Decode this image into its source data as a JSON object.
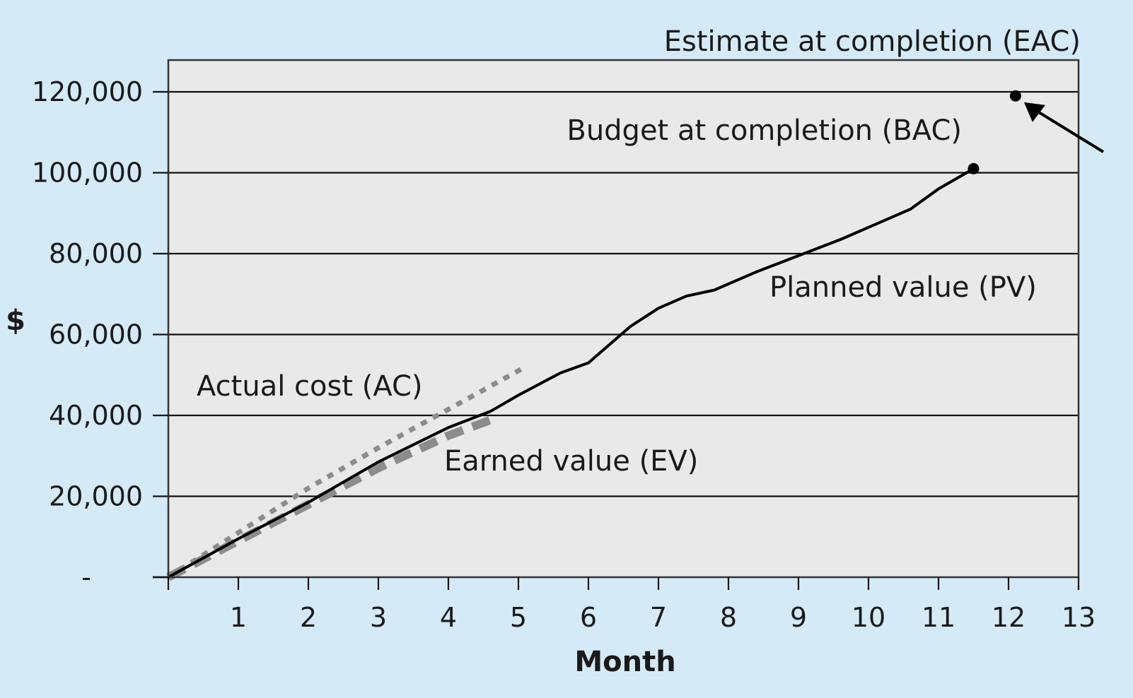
{
  "chart_data": {
    "type": "line",
    "title": "",
    "xlabel": "Month",
    "ylabel": "$",
    "xlim": [
      0,
      13
    ],
    "ylim": [
      0,
      125000
    ],
    "x_ticks": [
      1,
      2,
      3,
      4,
      5,
      6,
      7,
      8,
      9,
      10,
      11,
      12,
      13
    ],
    "x_tick_labels": [
      "1",
      "2",
      "3",
      "4",
      "5",
      "6",
      "7",
      "8",
      "9",
      "10",
      "11",
      "12",
      "13"
    ],
    "y_ticks": [
      0,
      20000,
      40000,
      60000,
      80000,
      100000,
      120000
    ],
    "y_tick_labels": [
      "-",
      "20,000",
      "40,000",
      "60,000",
      "80,000",
      "100,000",
      "120,000"
    ],
    "grid": "horizontal",
    "background": "#e9e9e9",
    "page_background": "#d4eaf7",
    "series": [
      {
        "name": "Planned value (PV)",
        "style": "solid",
        "color": "#000000",
        "x": [
          0,
          1,
          2,
          3,
          4,
          4.6,
          5,
          5.6,
          6,
          6.6,
          7,
          7.4,
          7.8,
          8.4,
          9,
          9.6,
          10,
          10.6,
          11,
          11.5
        ],
        "y": [
          0,
          9500,
          18500,
          28500,
          37000,
          41000,
          45000,
          50500,
          53000,
          62000,
          66500,
          69500,
          71000,
          75500,
          79500,
          83500,
          86500,
          91000,
          96000,
          101000
        ]
      },
      {
        "name": "Actual cost (AC)",
        "style": "dotted",
        "color": "#8c8c8c",
        "x": [
          0,
          1,
          2,
          3,
          4,
          5.1
        ],
        "y": [
          0,
          11000,
          22000,
          32000,
          41500,
          52000
        ]
      },
      {
        "name": "Earned value (EV)",
        "style": "dashed",
        "color": "#8c8c8c",
        "x": [
          0,
          1,
          2,
          3,
          4,
          4.7
        ],
        "y": [
          0,
          9000,
          18000,
          27000,
          35000,
          39500
        ]
      }
    ],
    "points": [
      {
        "name": "Budget at completion (BAC)",
        "x": 11.5,
        "y": 101000
      },
      {
        "name": "Estimate at completion (EAC)",
        "x": 12.1,
        "y": 119000
      }
    ],
    "annotations": [
      "Estimate at completion (EAC)",
      "Budget at completion (BAC)",
      "Planned value (PV)",
      "Actual cost (AC)",
      "Earned value (EV)"
    ]
  }
}
